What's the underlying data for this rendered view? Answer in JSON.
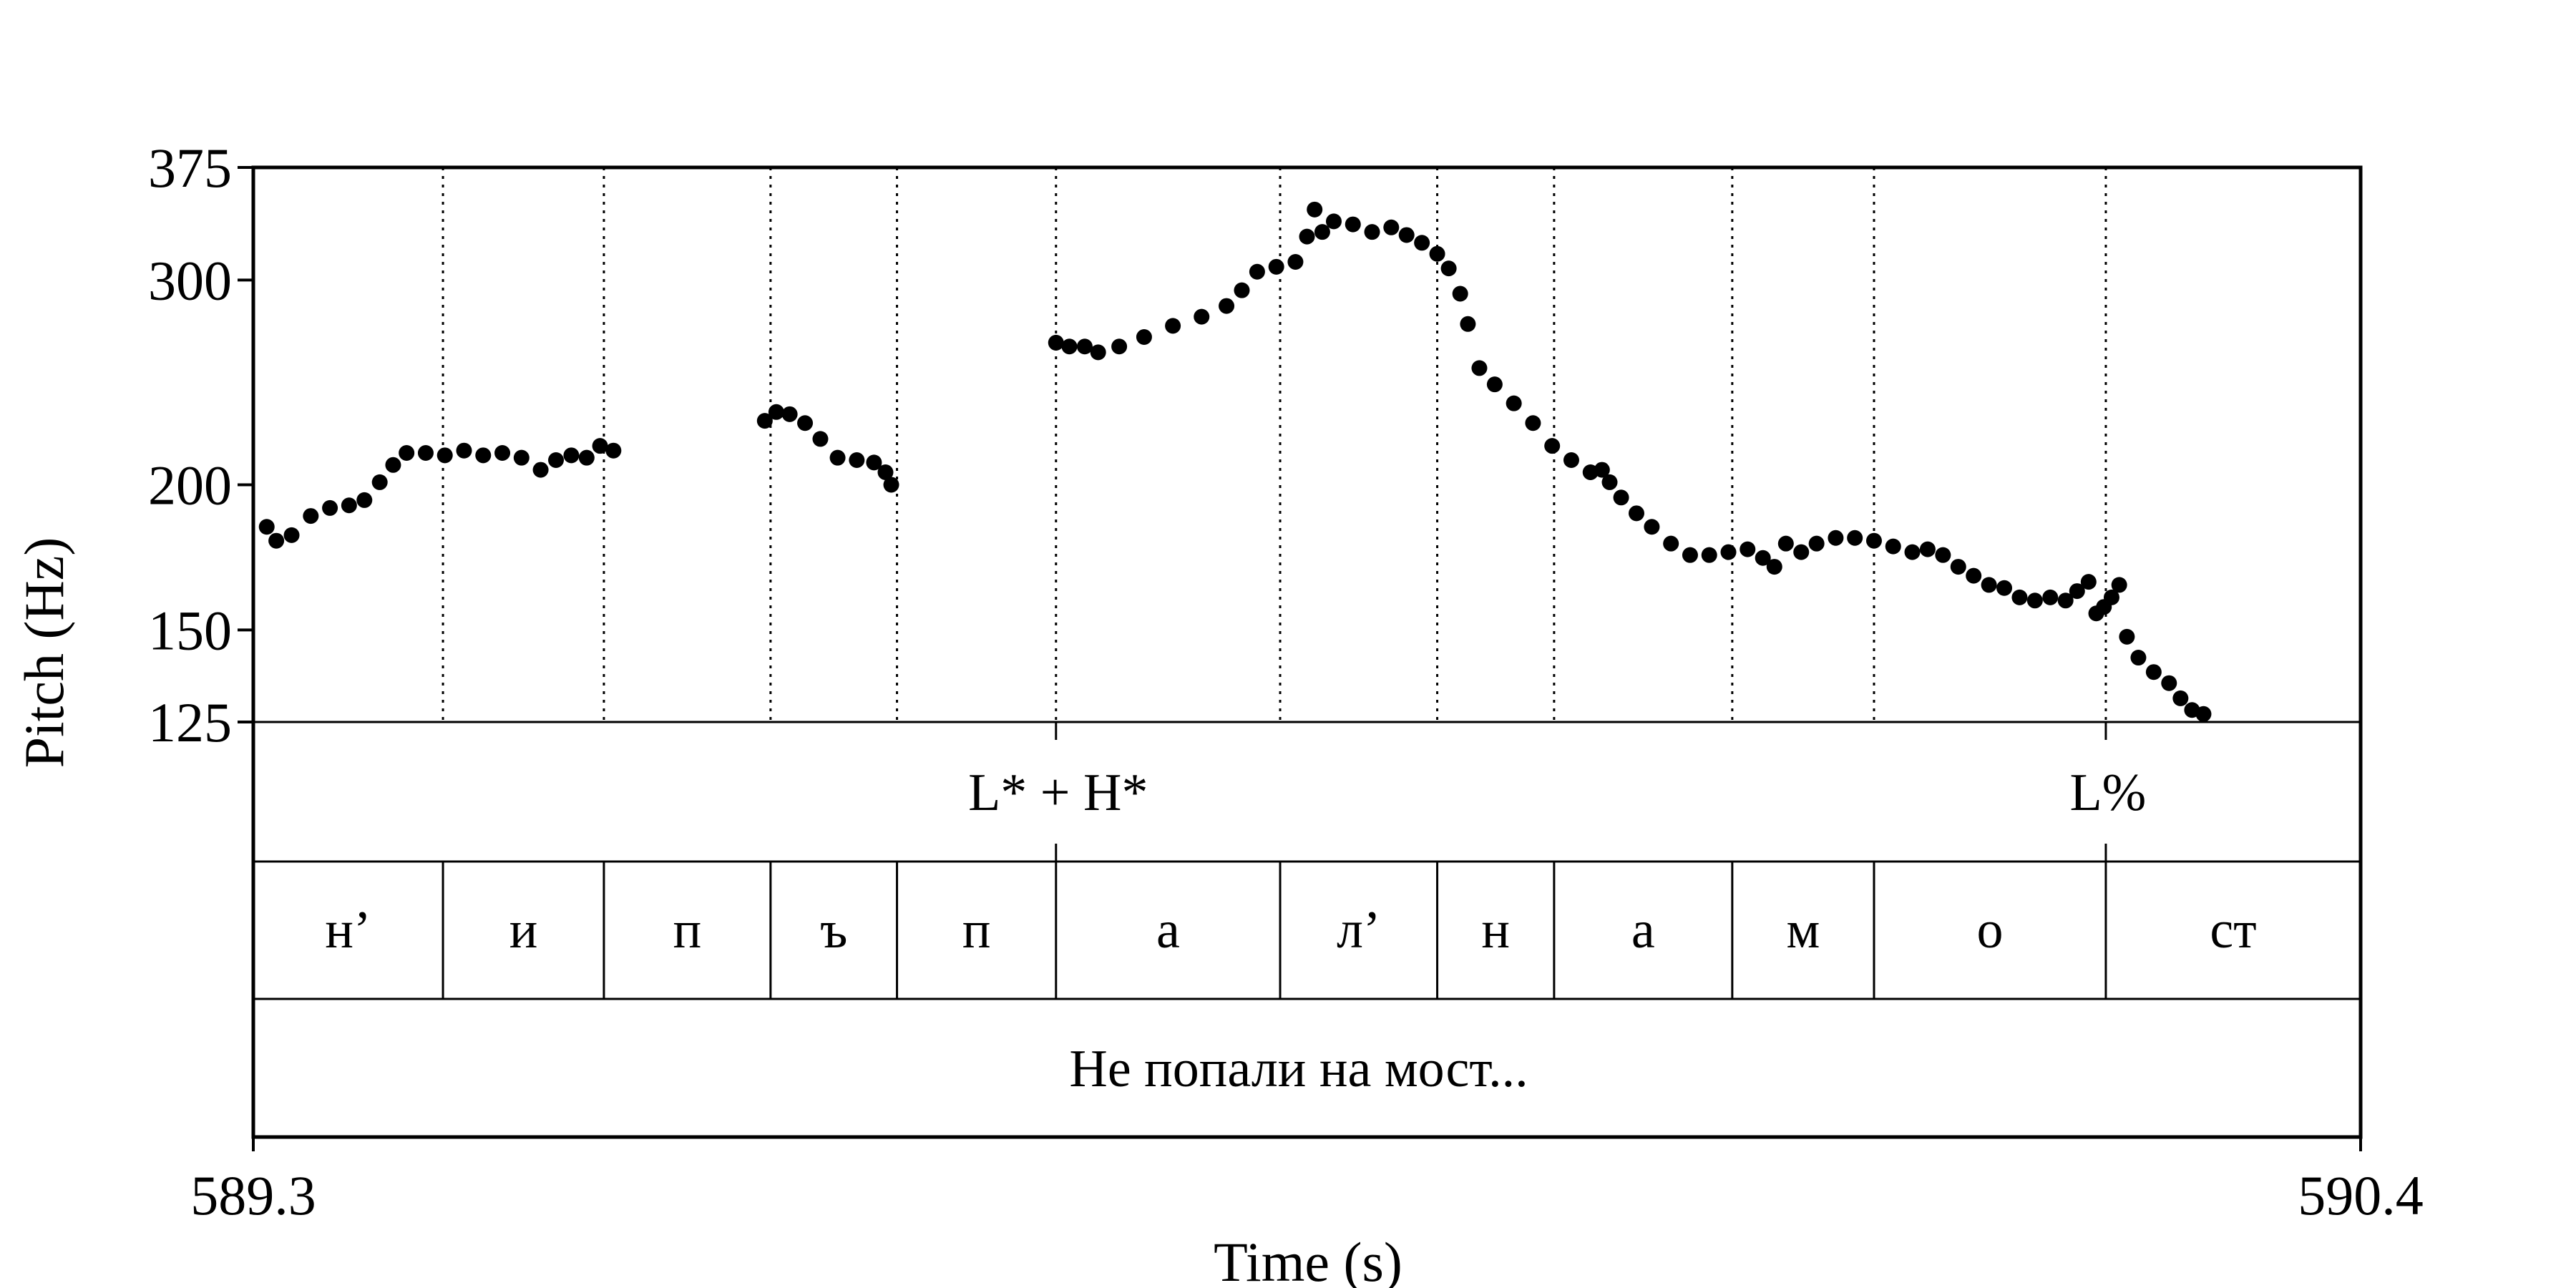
{
  "chart_data": {
    "type": "scatter",
    "xlabel": "Time (s)",
    "ylabel": "Pitch (Hz)",
    "xlim": [
      589.3,
      590.4
    ],
    "ylim": [
      125,
      375
    ],
    "y_scale": "log",
    "x_ticks": [
      "589.3",
      "590.4"
    ],
    "y_ticks": [
      {
        "value": 375,
        "label": "375"
      },
      {
        "value": 300,
        "label": "300"
      },
      {
        "value": 200,
        "label": "200"
      },
      {
        "value": 150,
        "label": "150"
      },
      {
        "value": 125,
        "label": "125"
      }
    ],
    "pitch_points": [
      [
        589.307,
        184
      ],
      [
        589.312,
        179
      ],
      [
        589.32,
        181
      ],
      [
        589.33,
        188
      ],
      [
        589.34,
        191
      ],
      [
        589.35,
        192
      ],
      [
        589.358,
        194
      ],
      [
        589.366,
        201
      ],
      [
        589.373,
        208
      ],
      [
        589.38,
        213
      ],
      [
        589.39,
        213
      ],
      [
        589.4,
        212
      ],
      [
        589.41,
        214
      ],
      [
        589.42,
        212
      ],
      [
        589.43,
        213
      ],
      [
        589.44,
        211
      ],
      [
        589.45,
        206
      ],
      [
        589.458,
        210
      ],
      [
        589.466,
        212
      ],
      [
        589.474,
        211
      ],
      [
        589.481,
        216
      ],
      [
        589.488,
        214
      ],
      [
        589.567,
        227
      ],
      [
        589.573,
        231
      ],
      [
        589.58,
        230
      ],
      [
        589.588,
        226
      ],
      [
        589.596,
        219
      ],
      [
        589.605,
        211
      ],
      [
        589.615,
        210
      ],
      [
        589.624,
        209
      ],
      [
        589.63,
        205
      ],
      [
        589.633,
        200
      ],
      [
        589.719,
        265
      ],
      [
        589.726,
        263
      ],
      [
        589.734,
        263
      ],
      [
        589.741,
        260
      ],
      [
        589.752,
        263
      ],
      [
        589.765,
        268
      ],
      [
        589.78,
        274
      ],
      [
        589.795,
        279
      ],
      [
        589.808,
        285
      ],
      [
        589.816,
        294
      ],
      [
        589.824,
        305
      ],
      [
        589.834,
        308
      ],
      [
        589.844,
        311
      ],
      [
        589.85,
        327
      ],
      [
        589.854,
        345
      ],
      [
        589.858,
        330
      ],
      [
        589.864,
        337
      ],
      [
        589.874,
        335
      ],
      [
        589.884,
        330
      ],
      [
        589.894,
        333
      ],
      [
        589.902,
        328
      ],
      [
        589.91,
        323
      ],
      [
        589.918,
        316
      ],
      [
        589.924,
        307
      ],
      [
        589.93,
        292
      ],
      [
        589.934,
        275
      ],
      [
        589.94,
        252
      ],
      [
        589.948,
        244
      ],
      [
        589.958,
        235
      ],
      [
        589.968,
        226
      ],
      [
        589.978,
        216
      ],
      [
        589.988,
        210
      ],
      [
        589.998,
        205
      ],
      [
        590.004,
        206
      ],
      [
        590.008,
        201
      ],
      [
        590.014,
        195
      ],
      [
        590.022,
        189
      ],
      [
        590.03,
        184
      ],
      [
        590.04,
        178
      ],
      [
        590.05,
        174
      ],
      [
        590.06,
        174
      ],
      [
        590.07,
        175
      ],
      [
        590.08,
        176
      ],
      [
        590.088,
        173
      ],
      [
        590.094,
        170
      ],
      [
        590.1,
        178
      ],
      [
        590.108,
        175
      ],
      [
        590.116,
        178
      ],
      [
        590.126,
        180
      ],
      [
        590.136,
        180
      ],
      [
        590.146,
        179
      ],
      [
        590.156,
        177
      ],
      [
        590.166,
        175
      ],
      [
        590.174,
        176
      ],
      [
        590.182,
        174
      ],
      [
        590.19,
        170
      ],
      [
        590.198,
        167
      ],
      [
        590.206,
        164
      ],
      [
        590.214,
        163
      ],
      [
        590.222,
        160
      ],
      [
        590.23,
        159
      ],
      [
        590.238,
        160
      ],
      [
        590.246,
        159
      ],
      [
        590.252,
        162
      ],
      [
        590.258,
        165
      ],
      [
        590.262,
        155
      ],
      [
        590.266,
        157
      ],
      [
        590.27,
        160
      ],
      [
        590.274,
        164
      ],
      [
        590.278,
        148
      ],
      [
        590.284,
        142
      ],
      [
        590.292,
        138
      ],
      [
        590.3,
        135
      ],
      [
        590.306,
        131
      ],
      [
        590.312,
        128
      ],
      [
        590.318,
        127
      ]
    ],
    "boundaries": [
      589.399,
      589.483,
      589.57,
      589.636,
      589.719,
      589.836,
      589.918,
      589.979,
      590.072,
      590.146,
      590.267
    ],
    "tones": [
      {
        "time": 589.719,
        "label": "L* + H*"
      },
      {
        "time": 590.267,
        "label": "L%"
      }
    ],
    "segments": [
      {
        "start": 589.3,
        "end": 589.399,
        "label": "н’"
      },
      {
        "start": 589.399,
        "end": 589.483,
        "label": "и"
      },
      {
        "start": 589.483,
        "end": 589.57,
        "label": "п"
      },
      {
        "start": 589.57,
        "end": 589.636,
        "label": "ъ"
      },
      {
        "start": 589.636,
        "end": 589.719,
        "label": "п"
      },
      {
        "start": 589.719,
        "end": 589.836,
        "label": "а"
      },
      {
        "start": 589.836,
        "end": 589.918,
        "label": "л’"
      },
      {
        "start": 589.918,
        "end": 589.979,
        "label": "н"
      },
      {
        "start": 589.979,
        "end": 590.072,
        "label": "а"
      },
      {
        "start": 590.072,
        "end": 590.146,
        "label": "м"
      },
      {
        "start": 590.146,
        "end": 590.267,
        "label": "о"
      },
      {
        "start": 590.267,
        "end": 590.4,
        "label": "ст"
      }
    ],
    "sentence": "Не попали на мост..."
  }
}
